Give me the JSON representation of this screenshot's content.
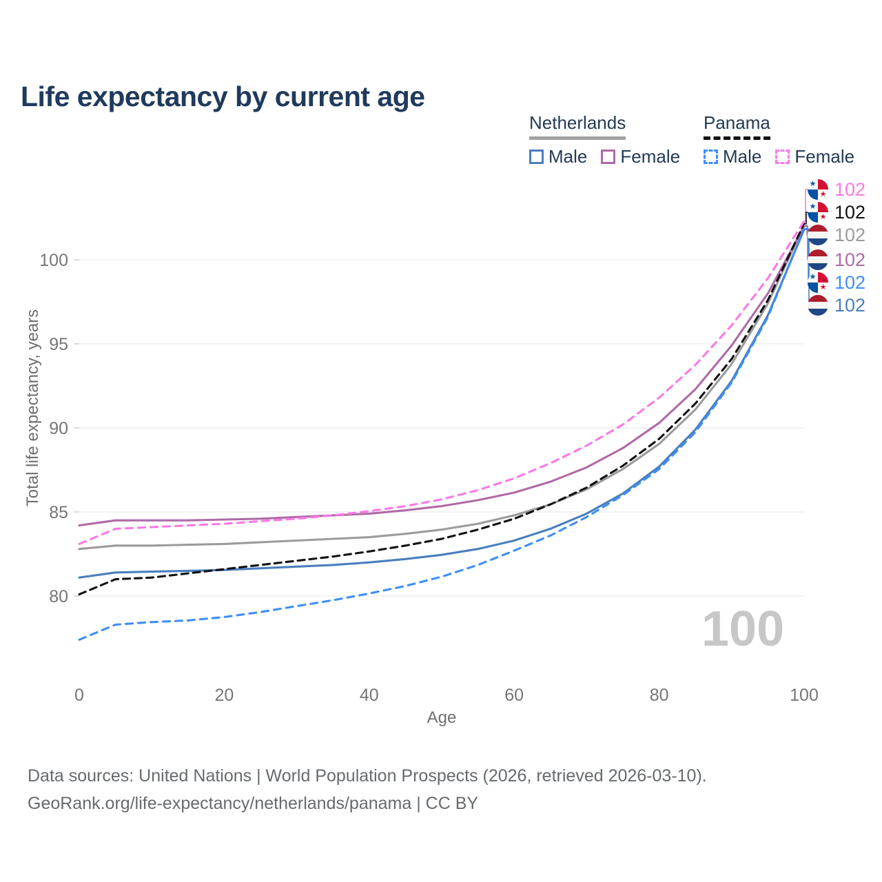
{
  "title": "Life expectancy by current age",
  "legend": {
    "groups": [
      {
        "label": "Netherlands",
        "line_style": "solid",
        "line_color": "#a2a2a2"
      },
      {
        "label": "Panama",
        "line_style": "dashed",
        "line_color": "#111111"
      }
    ],
    "items": [
      {
        "group": "Netherlands",
        "label": "Male",
        "color": "#4a7ebe",
        "style": "solid"
      },
      {
        "group": "Netherlands",
        "label": "Female",
        "color": "#b06aa6",
        "style": "solid"
      },
      {
        "group": "Panama",
        "label": "Male",
        "color": "#3e8ef7",
        "style": "dashed"
      },
      {
        "group": "Panama",
        "label": "Female",
        "color": "#fb79e7",
        "style": "dashed"
      }
    ]
  },
  "chart_data": {
    "type": "line",
    "title": "Life expectancy by current age",
    "xlabel": "Age",
    "ylabel": "Total life expectancy, years",
    "xticks": [
      0,
      20,
      40,
      60,
      80,
      100
    ],
    "yticks": [
      80,
      85,
      90,
      95,
      100
    ],
    "xlim": [
      0,
      100
    ],
    "ylim": [
      77,
      103
    ],
    "grid": "horizontal",
    "legend_position": "top-right",
    "x": [
      0,
      5,
      10,
      15,
      20,
      25,
      30,
      35,
      40,
      45,
      50,
      55,
      60,
      65,
      70,
      75,
      80,
      85,
      90,
      95,
      100
    ],
    "series": [
      {
        "id": "netherlands-both",
        "name": "Netherlands (both sexes)",
        "color": "#9b9b9b",
        "dash": null,
        "values": [
          82.8,
          83.0,
          83.0,
          83.05,
          83.1,
          83.2,
          83.3,
          83.4,
          83.5,
          83.7,
          83.95,
          84.3,
          84.8,
          85.45,
          86.35,
          87.55,
          89.05,
          91.1,
          93.8,
          97.4,
          102.05
        ]
      },
      {
        "id": "netherlands-male",
        "name": "Netherlands Male",
        "color": "#4a7ebe",
        "dash": null,
        "values": [
          81.1,
          81.4,
          81.45,
          81.5,
          81.55,
          81.65,
          81.75,
          81.85,
          82.0,
          82.2,
          82.45,
          82.8,
          83.3,
          84.0,
          84.9,
          86.1,
          87.7,
          89.9,
          92.8,
          96.7,
          101.8
        ]
      },
      {
        "id": "netherlands-female",
        "name": "Netherlands Female",
        "color": "#b06aa6",
        "dash": null,
        "values": [
          84.2,
          84.5,
          84.5,
          84.5,
          84.55,
          84.6,
          84.7,
          84.8,
          84.9,
          85.1,
          85.35,
          85.7,
          86.15,
          86.8,
          87.65,
          88.8,
          90.3,
          92.3,
          94.9,
          98.0,
          102.0
        ]
      },
      {
        "id": "panama-both",
        "name": "Panama (both sexes)",
        "color": "#111111",
        "dash": "10 7",
        "values": [
          80.1,
          81.0,
          81.1,
          81.35,
          81.6,
          81.85,
          82.1,
          82.35,
          82.65,
          83.0,
          83.4,
          83.95,
          84.6,
          85.45,
          86.45,
          87.75,
          89.35,
          91.45,
          94.1,
          97.6,
          102.15
        ]
      },
      {
        "id": "panama-male",
        "name": "Panama Male",
        "color": "#3e8ef7",
        "dash": "10 8",
        "values": [
          77.4,
          78.3,
          78.45,
          78.55,
          78.75,
          79.05,
          79.4,
          79.75,
          80.15,
          80.6,
          81.15,
          81.85,
          82.7,
          83.6,
          84.7,
          86.0,
          87.55,
          89.75,
          92.7,
          96.6,
          101.85
        ]
      },
      {
        "id": "panama-female",
        "name": "Panama Female",
        "color": "#fb79e7",
        "dash": "10 8",
        "values": [
          83.1,
          84.0,
          84.1,
          84.2,
          84.3,
          84.45,
          84.6,
          84.8,
          85.05,
          85.35,
          85.75,
          86.3,
          87.0,
          87.9,
          88.95,
          90.2,
          91.8,
          93.75,
          96.1,
          98.9,
          102.3
        ]
      }
    ]
  },
  "end_labels": [
    {
      "series": "panama-female",
      "flag": "panama",
      "value": "102",
      "color": "#fb79e7"
    },
    {
      "series": "panama-both",
      "flag": "panama",
      "value": "102",
      "color": "#111111"
    },
    {
      "series": "netherlands-both",
      "flag": "netherlands",
      "value": "102",
      "color": "#9b9b9b"
    },
    {
      "series": "netherlands-female",
      "flag": "netherlands",
      "value": "102",
      "color": "#b06aa6"
    },
    {
      "series": "panama-male",
      "flag": "panama",
      "value": "102",
      "color": "#3e8ef7"
    },
    {
      "series": "netherlands-male",
      "flag": "netherlands",
      "value": "102",
      "color": "#4a7ebe"
    }
  ],
  "annotations": {
    "watermark": "100"
  },
  "footer": {
    "line1": "Data sources: United Nations | World Population Prospects (2026, retrieved 2026-03-10).",
    "line2": "GeoRank.org/life-expectancy/netherlands/panama | CC BY"
  }
}
